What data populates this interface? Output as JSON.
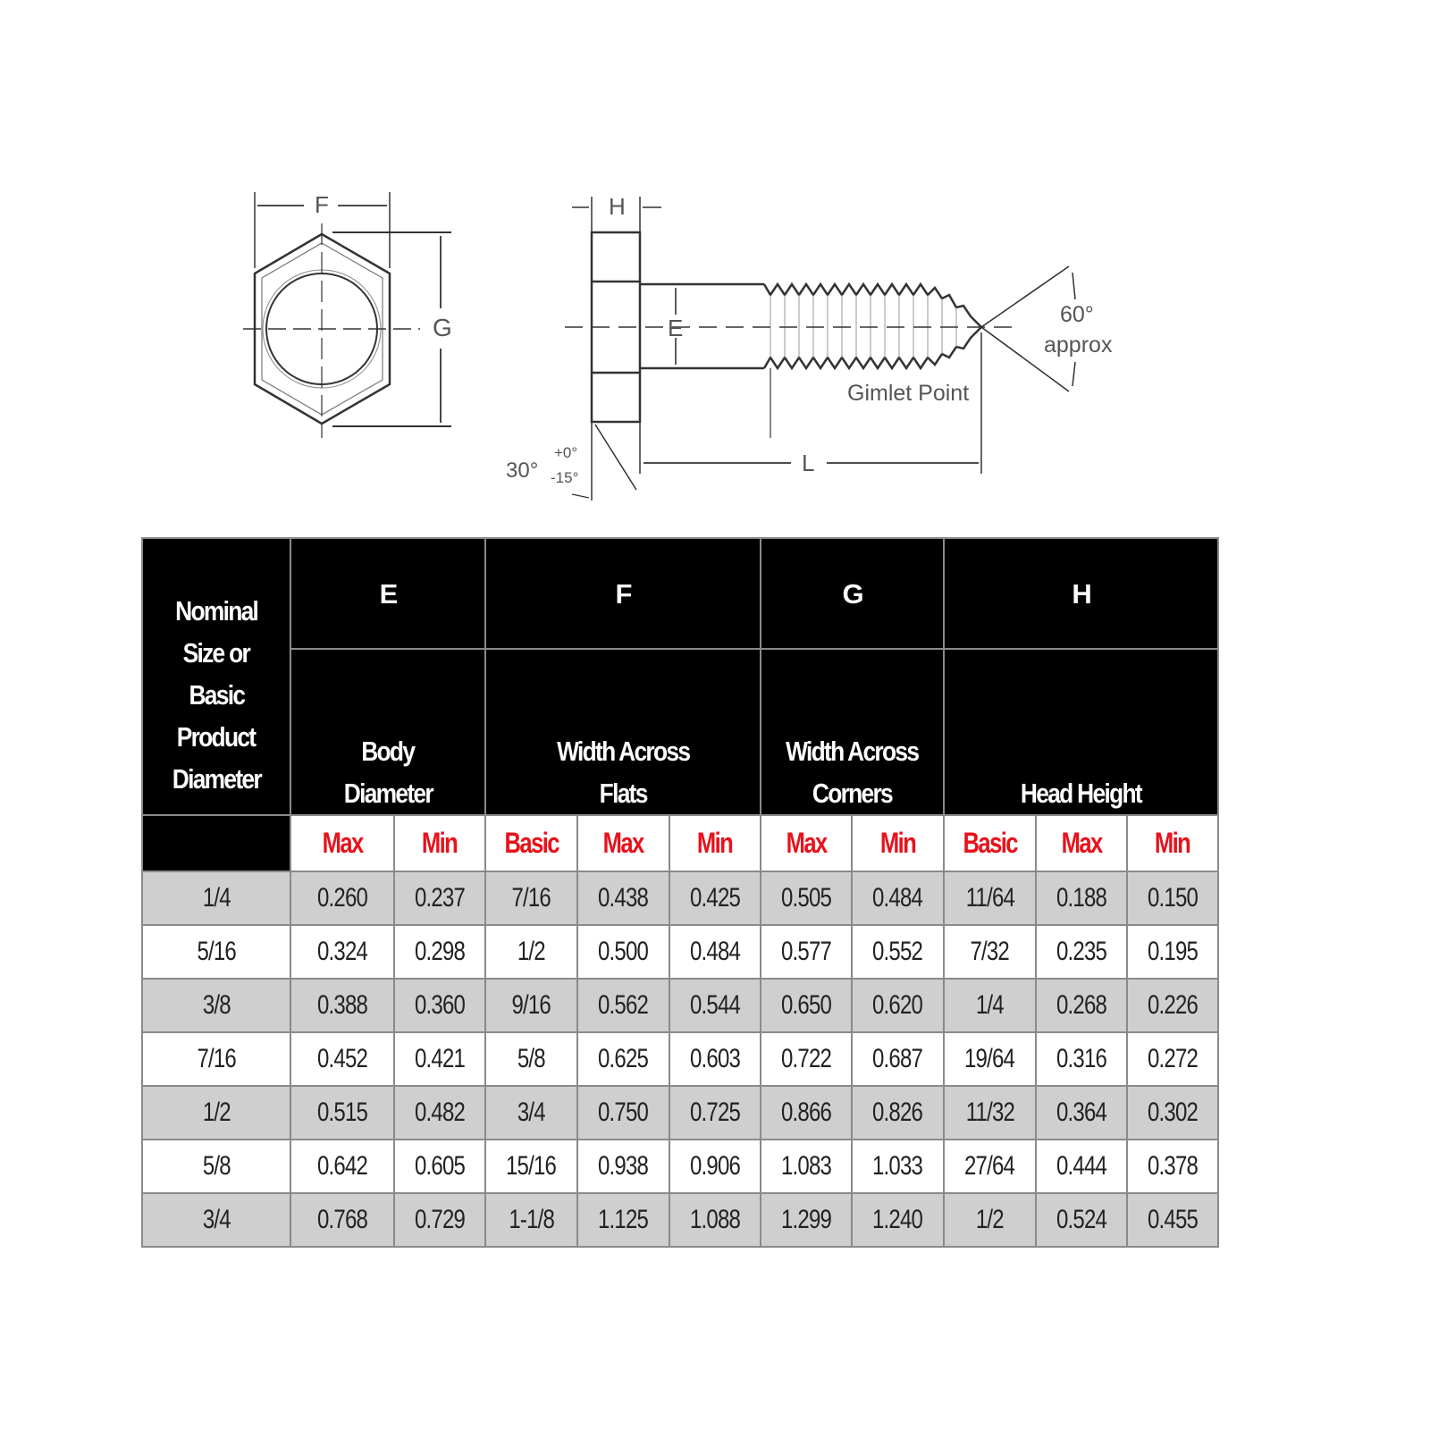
{
  "diagram": {
    "labels": {
      "F": "F",
      "G": "G",
      "H": "H",
      "E": "E",
      "L": "L",
      "angle_60": "60°",
      "approx": "approx",
      "gimlet_point": "Gimlet Point",
      "angle_30": "30°",
      "tol_plus": "+0°",
      "tol_minus": "-15°"
    }
  },
  "table": {
    "first_header": [
      "Nominal",
      "Size or",
      "Basic",
      "Product",
      "Diameter"
    ],
    "groups": [
      {
        "letter": "E",
        "name": [
          "Body",
          "Diameter"
        ],
        "subcols": [
          "Max",
          "Min"
        ]
      },
      {
        "letter": "F",
        "name": [
          "Width Across",
          "Flats"
        ],
        "subcols": [
          "Basic",
          "Max",
          "Min"
        ]
      },
      {
        "letter": "G",
        "name": [
          "Width Across",
          "Corners"
        ],
        "subcols": [
          "Max",
          "Min"
        ]
      },
      {
        "letter": "H",
        "name": [
          "",
          "Head Height"
        ],
        "subcols": [
          "Basic",
          "Max",
          "Min"
        ]
      }
    ],
    "rows": [
      [
        "1/4",
        "0.260",
        "0.237",
        "7/16",
        "0.438",
        "0.425",
        "0.505",
        "0.484",
        "11/64",
        "0.188",
        "0.150"
      ],
      [
        "5/16",
        "0.324",
        "0.298",
        "1/2",
        "0.500",
        "0.484",
        "0.577",
        "0.552",
        "7/32",
        "0.235",
        "0.195"
      ],
      [
        "3/8",
        "0.388",
        "0.360",
        "9/16",
        "0.562",
        "0.544",
        "0.650",
        "0.620",
        "1/4",
        "0.268",
        "0.226"
      ],
      [
        "7/16",
        "0.452",
        "0.421",
        "5/8",
        "0.625",
        "0.603",
        "0.722",
        "0.687",
        "19/64",
        "0.316",
        "0.272"
      ],
      [
        "1/2",
        "0.515",
        "0.482",
        "3/4",
        "0.750",
        "0.725",
        "0.866",
        "0.826",
        "11/32",
        "0.364",
        "0.302"
      ],
      [
        "5/8",
        "0.642",
        "0.605",
        "15/16",
        "0.938",
        "0.906",
        "1.083",
        "1.033",
        "27/64",
        "0.444",
        "0.378"
      ],
      [
        "3/4",
        "0.768",
        "0.729",
        "1-1/8",
        "1.125",
        "1.088",
        "1.299",
        "1.240",
        "1/2",
        "0.524",
        "0.455"
      ]
    ]
  },
  "colors": {
    "header_bg": "#000000",
    "subheader_text": "#e8121b",
    "row_shade": "#cfcfcf"
  }
}
